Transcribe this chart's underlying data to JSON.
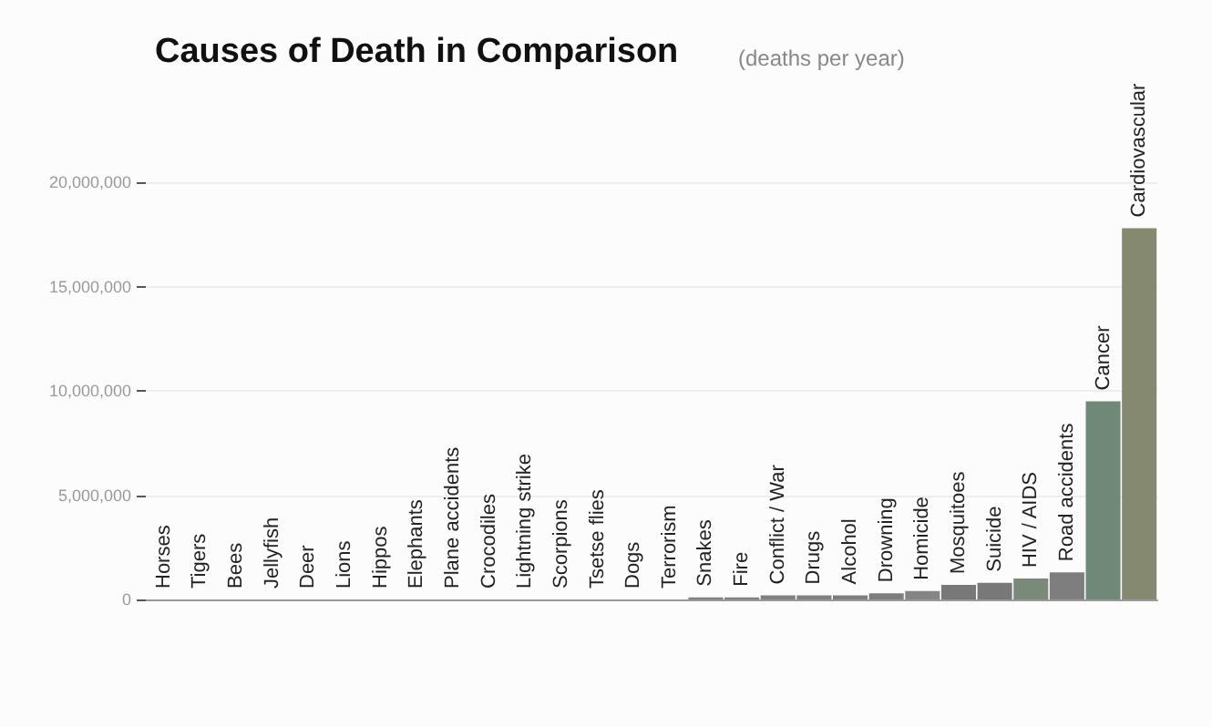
{
  "chart_data": {
    "type": "bar",
    "title": "Causes of Death in Comparison",
    "subtitle": "(deaths per year)",
    "categories": [
      "Horses",
      "Tigers",
      "Bees",
      "Jellyfish",
      "Deer",
      "Lions",
      "Hippos",
      "Elephants",
      "Plane accidents",
      "Crocodiles",
      "Lightning strike",
      "Scorpions",
      "Tsetse flies",
      "Dogs",
      "Terrorism",
      "Snakes",
      "Fire",
      "Conflict / War",
      "Drugs",
      "Alcohol",
      "Drowning",
      "Homicide",
      "Mosquitoes",
      "Suicide",
      "HIV / AIDS",
      "Road accidents",
      "Cancer",
      "Cardiovascular"
    ],
    "values": [
      0,
      0,
      0,
      0,
      0,
      0,
      0,
      0,
      0,
      0,
      0,
      0,
      0,
      0,
      0,
      100000,
      100000,
      200000,
      200000,
      200000,
      300000,
      400000,
      700000,
      800000,
      1000000,
      1300000,
      9500000,
      17800000
    ],
    "colors": [
      "#808080",
      "#808080",
      "#808080",
      "#808080",
      "#808080",
      "#808080",
      "#808080",
      "#808080",
      "#808080",
      "#808080",
      "#808080",
      "#808080",
      "#808080",
      "#808080",
      "#808080",
      "#808080",
      "#808080",
      "#808080",
      "#808080",
      "#7e7e7e",
      "#7e7e7e",
      "#858585",
      "#787878",
      "#787878",
      "#7a8a7a",
      "#7e7e7e",
      "#6f8878",
      "#85896f"
    ],
    "ylim": [
      0,
      20000000
    ],
    "yticks": [
      0,
      {
        "value": 5000000,
        "label": "5,000,000"
      },
      {
        "value": 10000000,
        "label": "10,000,000"
      },
      {
        "value": 15000000,
        "label": "15,000,000"
      },
      {
        "value": 20000000,
        "label": "20,000,000"
      }
    ],
    "grid": "y"
  }
}
